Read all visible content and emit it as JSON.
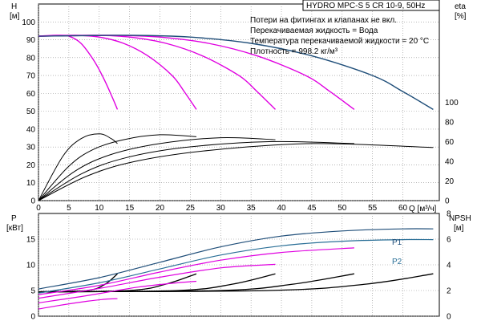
{
  "title": "HYDRO MPC-S 5 CR 10-9, 50Hz",
  "notes": [
    "Потери на фитингах и клапанах не вкл.",
    "Перекачиваемая жидкость = Вода",
    "Температура перекачиваемой жидкости = 20 °C",
    "Плотность = 998.2 кг/м³"
  ],
  "colors": {
    "magenta": "#e000e0",
    "navy": "#1f4e79",
    "teal": "#2a6f97",
    "black": "#000000",
    "grid": "#8c8c8c"
  },
  "chart_data": [
    {
      "type": "line",
      "panel": "upper",
      "xlabel": "Q [м³/ч]",
      "x_ticks": [
        "0",
        "5",
        "10",
        "15",
        "20",
        "25",
        "30",
        "35",
        "40",
        "45",
        "50",
        "55",
        "60"
      ],
      "xlim": [
        0,
        66
      ],
      "ylabel_left": "H",
      "ylabel_left_unit": "[м]",
      "y_ticks_left": [
        "0",
        "10",
        "20",
        "30",
        "40",
        "50",
        "60",
        "70",
        "80",
        "90",
        "100"
      ],
      "ylim_left": [
        0,
        110
      ],
      "ylabel_right": "eta",
      "ylabel_right_unit": "[%]",
      "y_ticks_right": [
        "0",
        "20",
        "40",
        "60",
        "80",
        "100"
      ],
      "ylim_right": [
        0,
        200
      ],
      "grid": true,
      "head_curves": [
        {
          "pumps": 1,
          "color": "magenta",
          "x": [
            0,
            3,
            5,
            7,
            9,
            10.5,
            12,
            13
          ],
          "y": [
            92,
            92.5,
            92,
            88,
            79,
            70,
            59,
            51
          ]
        },
        {
          "pumps": 2,
          "color": "magenta",
          "x": [
            0,
            6,
            10,
            14,
            18,
            22,
            24,
            26
          ],
          "y": [
            92,
            92.5,
            91.5,
            88,
            81,
            70,
            61,
            51
          ]
        },
        {
          "pumps": 3,
          "color": "magenta",
          "x": [
            0,
            9,
            15,
            21,
            27,
            33,
            36,
            39
          ],
          "y": [
            92,
            92.5,
            91.5,
            88,
            81,
            70,
            61,
            51
          ]
        },
        {
          "pumps": 4,
          "color": "magenta",
          "x": [
            0,
            12,
            20,
            28,
            36,
            44,
            48,
            52
          ],
          "y": [
            92,
            92.5,
            91.5,
            88,
            81,
            70,
            61,
            51
          ]
        },
        {
          "pumps": 5,
          "color": "navy",
          "x": [
            0,
            15,
            25,
            35,
            45,
            55,
            60,
            65
          ],
          "y": [
            92,
            92.5,
            91.5,
            88,
            81,
            70,
            61,
            51
          ]
        }
      ],
      "efficiency_curves": [
        {
          "pumps": 1,
          "x": [
            0,
            4,
            7,
            10,
            12,
            13
          ],
          "y": [
            0,
            45,
            63,
            68,
            63,
            58
          ]
        },
        {
          "pumps": 2,
          "x": [
            0,
            5,
            9,
            14,
            20,
            26
          ],
          "y": [
            0,
            35,
            52,
            62,
            67,
            65
          ]
        },
        {
          "pumps": 3,
          "x": [
            0,
            6,
            12,
            20,
            30,
            39
          ],
          "y": [
            0,
            30,
            47,
            58,
            64,
            62
          ]
        },
        {
          "pumps": 4,
          "x": [
            0,
            7,
            14,
            24,
            38,
            52
          ],
          "y": [
            0,
            27,
            43,
            54,
            60,
            58
          ]
        },
        {
          "pumps": 5,
          "x": [
            0,
            8,
            16,
            28,
            45,
            65
          ],
          "y": [
            0,
            25,
            40,
            51,
            58,
            54
          ]
        }
      ]
    },
    {
      "type": "line",
      "panel": "lower",
      "ylabel_left": "P",
      "ylabel_left_unit": "[кВт]",
      "y_ticks_left": [
        "0",
        "5",
        "10",
        "15"
      ],
      "ylim_left": [
        0,
        20
      ],
      "ylabel_right": "NPSH",
      "ylabel_right_unit": "[м]",
      "y_ticks_right": [
        "0",
        "2",
        "4",
        "6",
        "8"
      ],
      "ylim_right": [
        0,
        8
      ],
      "grid": true,
      "series_labels": [
        "P1",
        "P2"
      ],
      "power_curves": [
        {
          "label": "P1",
          "color": "navy",
          "x": [
            0,
            10,
            20,
            30,
            40,
            50,
            60,
            65
          ],
          "y": [
            5.3,
            7.5,
            10.5,
            13.5,
            15.6,
            16.6,
            17.0,
            17.0
          ]
        },
        {
          "label": "P2",
          "color": "teal",
          "x": [
            0,
            10,
            20,
            30,
            40,
            50,
            60,
            65
          ],
          "y": [
            4.5,
            6.5,
            9.2,
            11.9,
            13.7,
            14.6,
            14.9,
            14.9
          ]
        },
        {
          "pumps": 4,
          "color": "magenta",
          "x": [
            0,
            10,
            20,
            30,
            40,
            52
          ],
          "y": [
            4.2,
            6.0,
            8.6,
            10.9,
            12.4,
            13.3
          ]
        },
        {
          "pumps": 3,
          "color": "magenta",
          "x": [
            0,
            10,
            20,
            30,
            39
          ],
          "y": [
            3.5,
            5.4,
            7.6,
            9.4,
            10.1
          ]
        },
        {
          "pumps": 2,
          "color": "magenta",
          "x": [
            0,
            8,
            16,
            22,
            26
          ],
          "y": [
            2.6,
            4.0,
            5.6,
            6.4,
            6.8
          ]
        },
        {
          "pumps": 1,
          "color": "magenta",
          "x": [
            0,
            4,
            8,
            11,
            13
          ],
          "y": [
            1.4,
            2.2,
            2.9,
            3.3,
            3.4
          ]
        }
      ],
      "npsh_curves": [
        {
          "pumps": 1,
          "x": [
            0,
            8,
            11,
            13
          ],
          "y": [
            1.9,
            2.0,
            2.5,
            3.3
          ]
        },
        {
          "pumps": 2,
          "x": [
            0,
            15,
            21,
            26
          ],
          "y": [
            1.9,
            2.0,
            2.5,
            3.3
          ]
        },
        {
          "pumps": 3,
          "x": [
            0,
            23,
            32,
            39
          ],
          "y": [
            1.9,
            2.0,
            2.5,
            3.3
          ]
        },
        {
          "pumps": 4,
          "x": [
            0,
            30,
            42,
            52
          ],
          "y": [
            1.9,
            2.0,
            2.5,
            3.3
          ]
        },
        {
          "pumps": 5,
          "x": [
            0,
            38,
            54,
            65
          ],
          "y": [
            1.9,
            2.0,
            2.5,
            3.3
          ]
        }
      ]
    }
  ]
}
